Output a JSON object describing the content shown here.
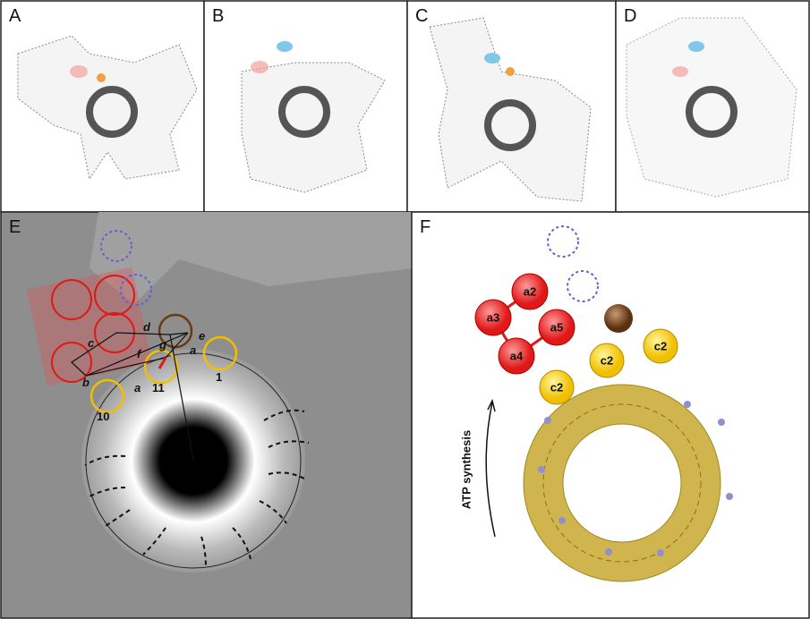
{
  "panels_top": [
    {
      "label": "A"
    },
    {
      "label": "B"
    },
    {
      "label": "C"
    },
    {
      "label": "D"
    }
  ],
  "panel_e": {
    "label": "E",
    "vectors": [
      "a",
      "b",
      "c",
      "d",
      "e",
      "f",
      "g",
      "a"
    ],
    "subunits": [
      "10",
      "11",
      "1"
    ]
  },
  "panel_f": {
    "label": "F",
    "a_subunits": [
      "a2",
      "a3",
      "a5",
      "a4"
    ],
    "c_subunits": [
      "c2",
      "c2",
      "c2"
    ],
    "arrow_label": "ATP synthesis"
  }
}
